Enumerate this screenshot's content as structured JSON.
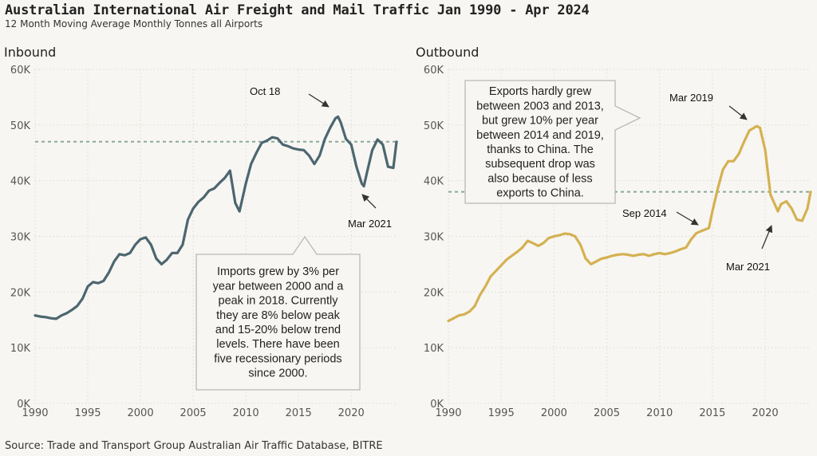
{
  "header": {
    "title": "Australian International Air Freight and Mail Traffic Jan 1990 - Apr 2024",
    "subtitle": "12 Month Moving Average Monthly Tonnes all Airports"
  },
  "source": "Source: Trade and Transport Group Australian Air Traffic Database, BITRE",
  "chart_data": [
    {
      "type": "line",
      "panel_title": "Inbound",
      "color": "#4d6670",
      "xlim": [
        1990,
        2024.3
      ],
      "ylim": [
        0,
        60000
      ],
      "xticks": [
        1990,
        1995,
        2000,
        2005,
        2010,
        2015,
        2020
      ],
      "yticks": [
        0,
        10000,
        20000,
        30000,
        40000,
        50000,
        60000
      ],
      "ytick_labels": [
        "0K",
        "10K",
        "20K",
        "30K",
        "40K",
        "50K",
        "60K"
      ],
      "grid": true,
      "reference_line": 47000,
      "series": [
        {
          "x": [
            1990,
            1990.5,
            1991,
            1991.5,
            1992,
            1992.5,
            1993,
            1993.5,
            1994,
            1994.5,
            1995,
            1995.5,
            1996,
            1996.5,
            1997,
            1997.5,
            1998,
            1998.5,
            1999,
            1999.5,
            2000,
            2000.5,
            2001,
            2001.5,
            2002,
            2002.5,
            2003,
            2003.5,
            2004,
            2004.5,
            2005,
            2005.5,
            2006,
            2006.5,
            2007,
            2007.5,
            2008,
            2008.5,
            2009,
            2009.4,
            2010,
            2010.5,
            2011,
            2011.5,
            2012,
            2012.5,
            2013,
            2013.5,
            2014,
            2014.5,
            2015,
            2015.5,
            2016,
            2016.5,
            2017,
            2017.5,
            2018,
            2018.5,
            2018.75,
            2019,
            2019.5,
            2020,
            2020.5,
            2021,
            2021.2,
            2021.5,
            2022,
            2022.5,
            2023,
            2023.5,
            2024,
            2024.3
          ],
          "y": [
            15800,
            15600,
            15500,
            15300,
            15200,
            15800,
            16200,
            16800,
            17500,
            18800,
            21000,
            21800,
            21600,
            22000,
            23500,
            25500,
            26800,
            26600,
            27000,
            28500,
            29500,
            29800,
            28500,
            26000,
            25000,
            25800,
            27000,
            27000,
            28500,
            33000,
            35000,
            36200,
            37000,
            38200,
            38600,
            39600,
            40500,
            41800,
            36000,
            34500,
            39500,
            43000,
            45000,
            46800,
            47200,
            47800,
            47600,
            46500,
            46200,
            45800,
            45600,
            45500,
            44500,
            43000,
            44500,
            47500,
            49500,
            51200,
            51500,
            50500,
            47500,
            46500,
            42500,
            39500,
            39000,
            41500,
            45500,
            47400,
            46500,
            42500,
            42300,
            47000
          ]
        }
      ],
      "annotations": [
        {
          "text": "Oct 18",
          "x": 2018.75,
          "y": 51500
        },
        {
          "text": "Mar 2021",
          "x": 2021.2,
          "y": 39000
        }
      ],
      "callout": [
        "Imports grew by 3% per",
        "year between 2000 and a",
        "peak in 2018. Currently",
        "they are 8% below peak",
        "and 15-20% below trend",
        "levels. There have been",
        "five recessionary periods",
        "since 2000."
      ]
    },
    {
      "type": "line",
      "panel_title": "Outbound",
      "color": "#d4b152",
      "xlim": [
        1990,
        2024.3
      ],
      "ylim": [
        0,
        60000
      ],
      "xticks": [
        1990,
        1995,
        2000,
        2005,
        2010,
        2015,
        2020
      ],
      "yticks": [
        0,
        10000,
        20000,
        30000,
        40000,
        50000,
        60000
      ],
      "ytick_labels": [
        "0K",
        "10K",
        "20K",
        "30K",
        "40K",
        "50K",
        "60K"
      ],
      "grid": true,
      "reference_line": 38000,
      "series": [
        {
          "x": [
            1990,
            1990.5,
            1991,
            1991.5,
            1992,
            1992.5,
            1993,
            1993.5,
            1994,
            1994.5,
            1995,
            1995.5,
            1996,
            1996.5,
            1997,
            1997.5,
            1998,
            1998.5,
            1999,
            1999.5,
            2000,
            2000.5,
            2001,
            2001.5,
            2002,
            2002.5,
            2003,
            2003.5,
            2004,
            2004.5,
            2005,
            2005.5,
            2006,
            2006.5,
            2007,
            2007.5,
            2008,
            2008.5,
            2009,
            2009.5,
            2010,
            2010.5,
            2011,
            2011.5,
            2012,
            2012.5,
            2013,
            2013.5,
            2014,
            2014.67,
            2015,
            2015.5,
            2016,
            2016.5,
            2017,
            2017.5,
            2018,
            2018.5,
            2019.2,
            2019.5,
            2020,
            2020.5,
            2021.2,
            2021.5,
            2022,
            2022.5,
            2023,
            2023.5,
            2024,
            2024.3
          ],
          "y": [
            14800,
            15300,
            15800,
            16000,
            16500,
            17500,
            19500,
            21000,
            22800,
            23800,
            24800,
            25800,
            26500,
            27200,
            28000,
            29200,
            28800,
            28300,
            28800,
            29700,
            30000,
            30200,
            30500,
            30400,
            30000,
            28500,
            26000,
            25000,
            25500,
            26000,
            26200,
            26500,
            26700,
            26800,
            26700,
            26500,
            26700,
            26800,
            26500,
            26800,
            27000,
            26800,
            27000,
            27300,
            27700,
            28000,
            29500,
            30600,
            31000,
            31500,
            34500,
            38500,
            42000,
            43500,
            43500,
            44800,
            47000,
            49000,
            49800,
            49500,
            45500,
            37500,
            34500,
            35800,
            36300,
            35000,
            33000,
            32800,
            35000,
            38000
          ]
        }
      ],
      "annotations": [
        {
          "text": "Mar 2019",
          "x": 2019.2,
          "y": 49800
        },
        {
          "text": "Sep 2014",
          "x": 2014.67,
          "y": 31500
        },
        {
          "text": "Mar 2021",
          "x": 2021.2,
          "y": 34500
        }
      ],
      "callout": [
        "Exports hardly grew",
        "between 2003 and 2013,",
        "but grew 10% per year",
        "between 2014 and 2019,",
        "thanks to China. The",
        "subsequent drop was",
        "also because of less",
        "exports to China."
      ]
    }
  ]
}
